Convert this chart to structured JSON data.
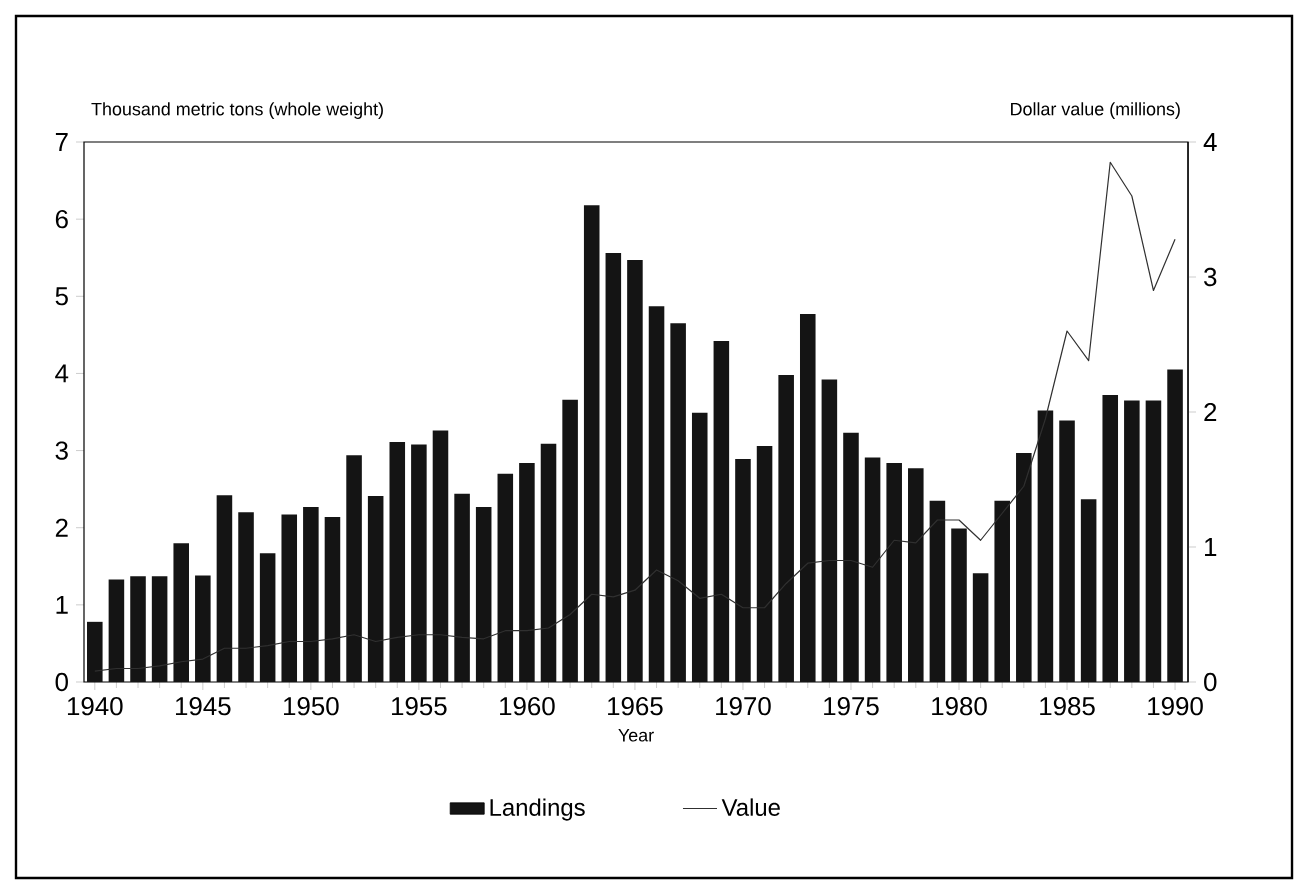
{
  "chart_data": {
    "type": "bar",
    "x": [
      1940,
      1941,
      1942,
      1943,
      1944,
      1945,
      1946,
      1947,
      1948,
      1949,
      1950,
      1951,
      1952,
      1953,
      1954,
      1955,
      1956,
      1957,
      1958,
      1959,
      1960,
      1961,
      1962,
      1963,
      1964,
      1965,
      1966,
      1967,
      1968,
      1969,
      1970,
      1971,
      1972,
      1973,
      1974,
      1975,
      1976,
      1977,
      1978,
      1979,
      1980,
      1981,
      1982,
      1983,
      1984,
      1985,
      1986,
      1987,
      1988,
      1989,
      1990
    ],
    "series": [
      {
        "name": "Landings",
        "color": "#141414",
        "values": [
          0.78,
          1.33,
          1.37,
          1.37,
          1.8,
          1.38,
          2.42,
          2.2,
          1.67,
          2.17,
          2.27,
          2.14,
          2.94,
          2.41,
          3.11,
          3.08,
          3.26,
          2.44,
          2.27,
          2.7,
          2.84,
          3.09,
          3.66,
          6.18,
          5.56,
          5.47,
          4.87,
          4.65,
          3.49,
          4.42,
          2.89,
          3.06,
          3.98,
          4.77,
          3.92,
          3.23,
          2.91,
          2.84,
          2.77,
          2.35,
          1.99,
          1.41,
          2.35,
          2.97,
          3.52,
          3.39,
          2.37,
          3.72,
          3.65,
          3.65,
          4.05
        ]
      },
      {
        "name": "Value",
        "type": "line",
        "axis": "y2",
        "color": "#303030",
        "values": [
          0.08,
          0.1,
          0.1,
          0.12,
          0.15,
          0.17,
          0.25,
          0.25,
          0.27,
          0.3,
          0.3,
          0.32,
          0.35,
          0.3,
          0.33,
          0.35,
          0.35,
          0.33,
          0.32,
          0.38,
          0.38,
          0.4,
          0.5,
          0.65,
          0.63,
          0.68,
          0.83,
          0.75,
          0.62,
          0.65,
          0.55,
          0.55,
          0.73,
          0.88,
          0.9,
          0.9,
          0.85,
          1.05,
          1.03,
          1.2,
          1.2,
          1.05,
          1.25,
          1.45,
          1.95,
          2.6,
          2.38,
          3.85,
          3.6,
          2.9,
          3.28
        ]
      }
    ],
    "xlabel": "Year",
    "ylabel": "Thousand metric tons (whole weight)",
    "y2label": "Dollar value (millions)",
    "xlim": [
      1939.5,
      1990.6
    ],
    "xticks": [
      1940,
      1945,
      1950,
      1955,
      1960,
      1965,
      1970,
      1975,
      1980,
      1985,
      1990
    ],
    "ylim": [
      0,
      7
    ],
    "yticks": [
      0,
      1,
      2,
      3,
      4,
      5,
      6,
      7
    ],
    "y2lim": [
      0,
      4
    ],
    "y2ticks": [
      0,
      1,
      2,
      3,
      4
    ],
    "legend": "bottom",
    "grid": false,
    "marker": "none",
    "line_style": "solid"
  }
}
